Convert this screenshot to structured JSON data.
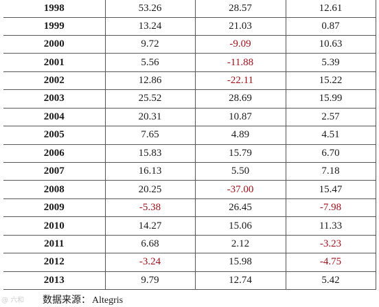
{
  "table": {
    "rows": [
      {
        "year": "1998",
        "a": "53.26",
        "b": "28.57",
        "c": "12.61"
      },
      {
        "year": "1999",
        "a": "13.24",
        "b": "21.03",
        "c": "0.87"
      },
      {
        "year": "2000",
        "a": "9.72",
        "b": "-9.09",
        "c": "10.63"
      },
      {
        "year": "2001",
        "a": "5.56",
        "b": "-11.88",
        "c": "5.39"
      },
      {
        "year": "2002",
        "a": "12.86",
        "b": "-22.11",
        "c": "15.22"
      },
      {
        "year": "2003",
        "a": "25.52",
        "b": "28.69",
        "c": "15.99"
      },
      {
        "year": "2004",
        "a": "20.31",
        "b": "10.87",
        "c": "2.57"
      },
      {
        "year": "2005",
        "a": "7.65",
        "b": "4.89",
        "c": "4.51"
      },
      {
        "year": "2006",
        "a": "15.83",
        "b": "15.79",
        "c": "6.70"
      },
      {
        "year": "2007",
        "a": "16.13",
        "b": "5.50",
        "c": "7.18"
      },
      {
        "year": "2008",
        "a": "20.25",
        "b": "-37.00",
        "c": "15.47"
      },
      {
        "year": "2009",
        "a": "-5.38",
        "b": "26.45",
        "c": "-7.98"
      },
      {
        "year": "2010",
        "a": "14.27",
        "b": "15.06",
        "c": "11.33"
      },
      {
        "year": "2011",
        "a": "6.68",
        "b": "2.12",
        "c": "-3.23"
      },
      {
        "year": "2012",
        "a": "-3.24",
        "b": "15.98",
        "c": "-4.75"
      },
      {
        "year": "2013",
        "a": "9.79",
        "b": "12.74",
        "c": "5.42"
      }
    ]
  },
  "source": {
    "label": "数据来源：",
    "name": "Altegris"
  },
  "watermark": {
    "text": "@ 六和"
  },
  "colors": {
    "negative": "#a0101a",
    "text": "#1a1a1a",
    "border": "#555555"
  }
}
